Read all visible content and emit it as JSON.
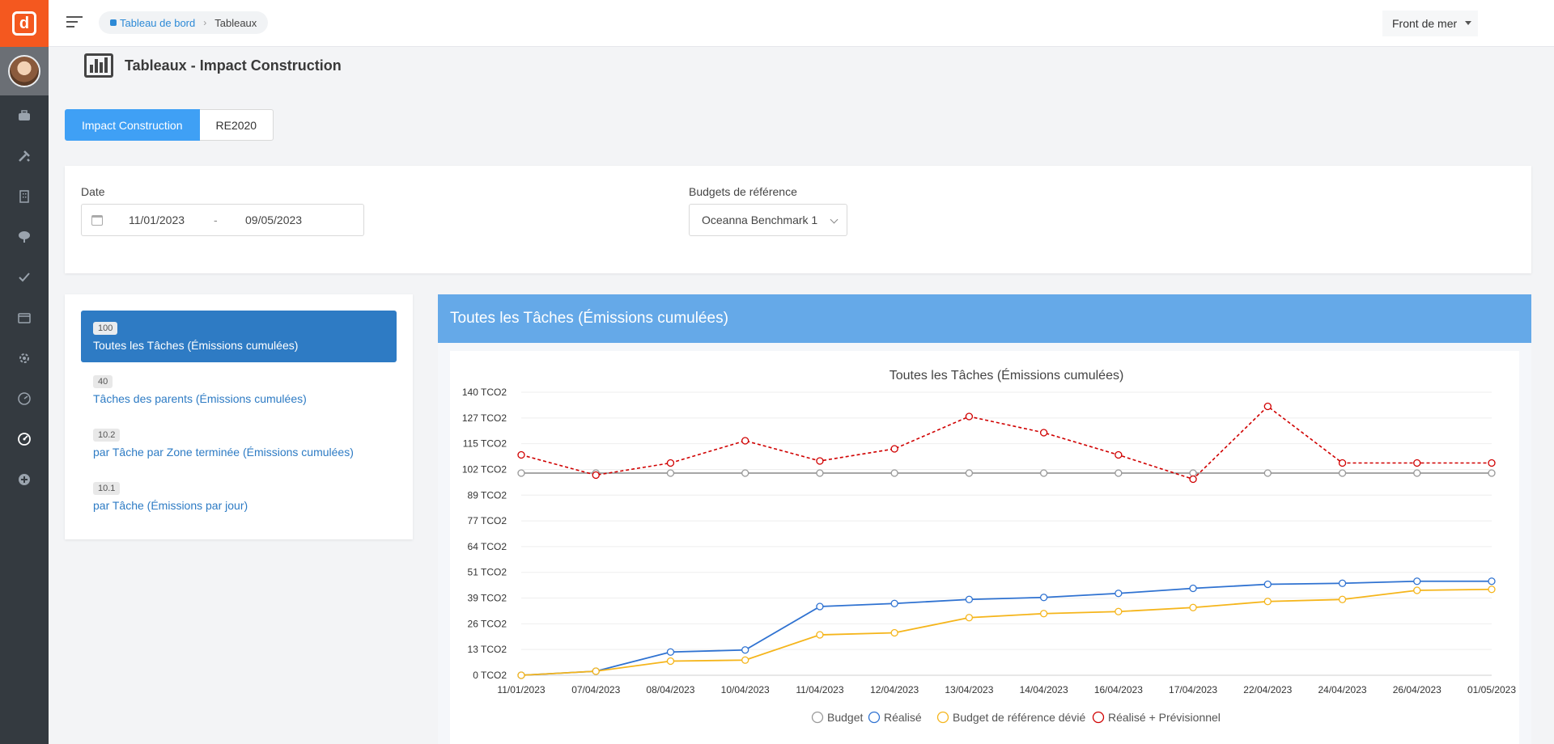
{
  "app": {
    "logo_letter": "d"
  },
  "breadcrumb": {
    "home": "Tableau de bord",
    "current": "Tableaux"
  },
  "site_selector": {
    "value": "Front de mer"
  },
  "page": {
    "title": "Tableaux - Impact Construction"
  },
  "tabs": [
    {
      "label": "Impact Construction",
      "active": true
    },
    {
      "label": "RE2020",
      "active": false
    }
  ],
  "filters": {
    "date_label": "Date",
    "date_start": "11/01/2023",
    "date_sep": "-",
    "date_end": "09/05/2023",
    "budget_label": "Budgets de référence",
    "budget_value": "Oceanna Benchmark 1"
  },
  "report_list": [
    {
      "badge": "100",
      "label": "Toutes les Tâches (Émissions cumulées)",
      "active": true
    },
    {
      "badge": "40",
      "label": "Tâches des parents (Émissions cumulées)",
      "active": false
    },
    {
      "badge": "10.2",
      "label": "par Tâche par Zone terminée (Émissions cumulées)",
      "active": false
    },
    {
      "badge": "10.1",
      "label": "par Tâche (Émissions par jour)",
      "active": false
    }
  ],
  "chart_panel": {
    "header": "Toutes les Tâches (Émissions cumulées)"
  },
  "colors": {
    "accent": "#3fa0f5",
    "panel_header": "#65a9e8",
    "logo": "#f4581f",
    "sidebar": "#343a40"
  },
  "chart_data": {
    "type": "line",
    "title": "Toutes les Tâches (Émissions cumulées)",
    "xlabel": "",
    "ylabel": "",
    "y_unit": "TCO2",
    "y_ticks": [
      "0 TCO2",
      "13 TCO2",
      "26 TCO2",
      "39 TCO2",
      "51 TCO2",
      "64 TCO2",
      "77 TCO2",
      "89 TCO2",
      "102 TCO2",
      "115 TCO2",
      "127 TCO2",
      "140 TCO2"
    ],
    "ylim": [
      0,
      140
    ],
    "grid": true,
    "legend_position": "bottom",
    "categories": [
      "11/01/2023",
      "07/04/2023",
      "08/04/2023",
      "10/04/2023",
      "11/04/2023",
      "12/04/2023",
      "13/04/2023",
      "14/04/2023",
      "16/04/2023",
      "17/04/2023",
      "22/04/2023",
      "24/04/2023",
      "26/04/2023",
      "01/05/2023"
    ],
    "series": [
      {
        "name": "Budget",
        "color": "#999999",
        "dashed": false,
        "values": [
          100,
          100,
          100,
          100,
          100,
          100,
          100,
          100,
          100,
          100,
          100,
          100,
          100,
          100
        ]
      },
      {
        "name": "Réalisé",
        "color": "#2f72d1",
        "dashed": false,
        "values": [
          0,
          2,
          11.5,
          12.5,
          34,
          35.5,
          37.5,
          38.5,
          40.5,
          43,
          45,
          45.5,
          46.5,
          46.5
        ]
      },
      {
        "name": "Budget de référence dévié",
        "color": "#f5b51b",
        "dashed": false,
        "values": [
          0,
          2,
          7,
          7.5,
          20,
          21,
          28.5,
          30.5,
          31.5,
          33.5,
          36.5,
          37.5,
          42,
          42.5
        ]
      },
      {
        "name": "Réalisé + Prévisionnel",
        "color": "#d00000",
        "dashed": true,
        "values": [
          109,
          99,
          105,
          116,
          106,
          112,
          128,
          120,
          109,
          97,
          133,
          105,
          105,
          105
        ]
      }
    ]
  }
}
